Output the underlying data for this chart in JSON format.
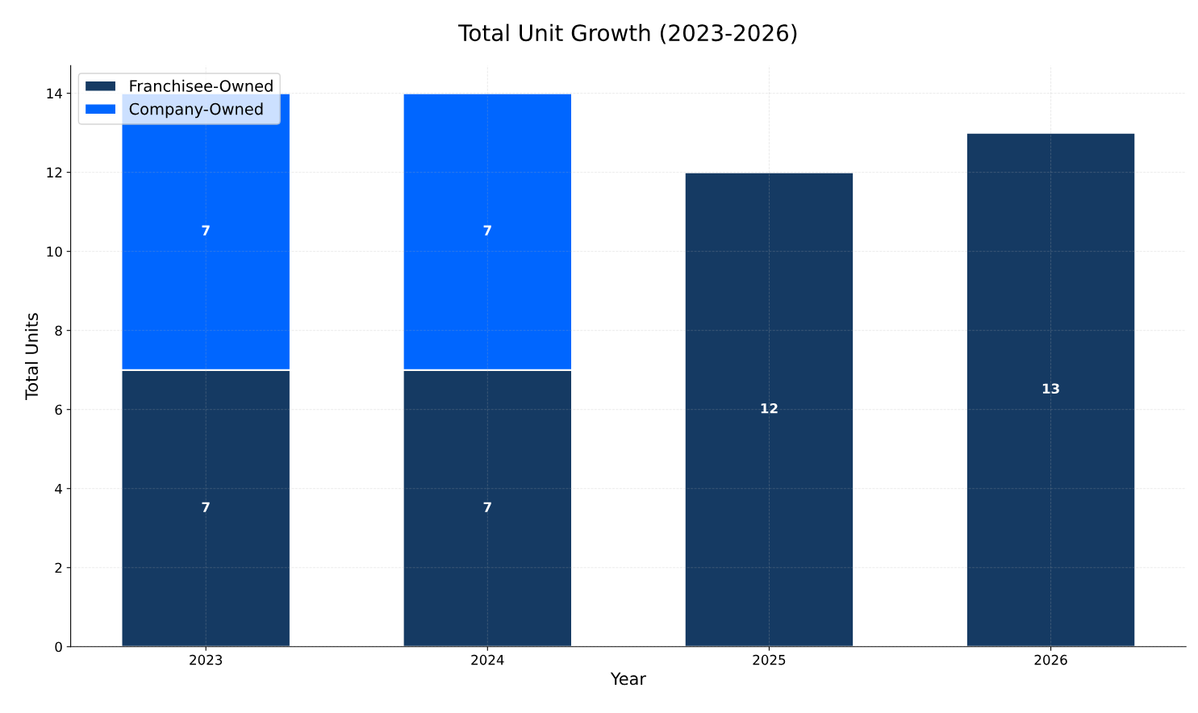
{
  "chart_data": {
    "type": "bar",
    "title": "Total Unit Growth (2023-2026)",
    "xlabel": "Year",
    "ylabel": "Total Units",
    "categories": [
      "2023",
      "2024",
      "2025",
      "2026"
    ],
    "series": [
      {
        "name": "Franchisee-Owned",
        "color": "#153a63",
        "values": [
          7,
          7,
          12,
          13
        ]
      },
      {
        "name": "Company-Owned",
        "color": "#0066ff",
        "values": [
          7,
          7,
          null,
          null
        ]
      }
    ],
    "stacked": true,
    "ylim": [
      0,
      14.7
    ],
    "yticks": [
      0,
      2,
      4,
      6,
      8,
      10,
      12,
      14
    ],
    "grid": true,
    "legend": "top left",
    "data_labels": true
  }
}
